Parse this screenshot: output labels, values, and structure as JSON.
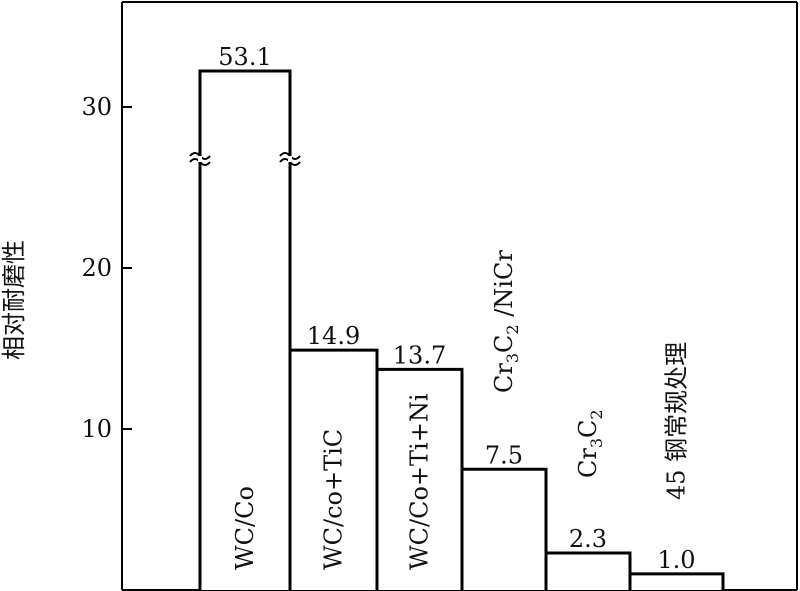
{
  "chart_data": {
    "type": "bar",
    "ylabel": "相对耐磨性",
    "ylim": [
      0,
      36
    ],
    "yticks": [
      10,
      20,
      30
    ],
    "axis_break_on": "WC/Co",
    "categories": [
      [
        "WC/Co"
      ],
      [
        "WC/co+TiC"
      ],
      [
        "WC/Co+Ti+Ni"
      ],
      [
        "Cr",
        "3",
        "C",
        "2",
        " /NiCr"
      ],
      [
        "Cr",
        "3",
        "C",
        "2"
      ],
      [
        "45 钢常规处理"
      ]
    ],
    "values": [
      53.1,
      14.9,
      13.7,
      7.5,
      2.3,
      1.0
    ],
    "value_labels": [
      "53.1",
      "14.9",
      "13.7",
      "7.5",
      "2.3",
      "1.0"
    ]
  }
}
